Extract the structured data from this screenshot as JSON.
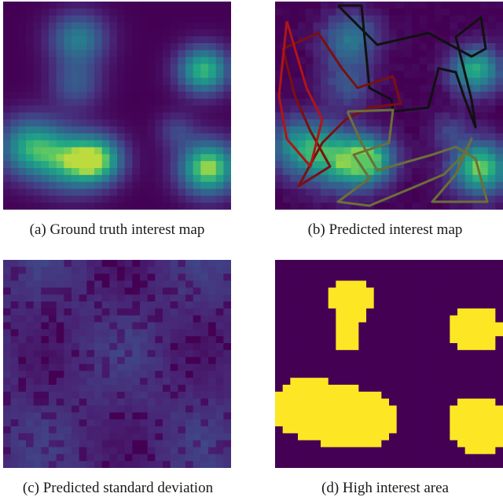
{
  "figure": {
    "panels": [
      {
        "id": "a",
        "caption": "(a)  Ground truth interest map"
      },
      {
        "id": "b",
        "caption": "(b)  Predicted interest map"
      },
      {
        "id": "c",
        "caption": "(c)  Predicted standard deviation"
      },
      {
        "id": "d",
        "caption": "(d)  High interest area"
      }
    ],
    "colors": {
      "viridis_low": "#440154",
      "viridis_mid": "#21918c",
      "viridis_high": "#fde725",
      "path_red": "#b01515",
      "path_dark_red": "#7a1010",
      "path_olive": "#6b6f3a",
      "path_black": "#111111",
      "binary_low": "#440154",
      "binary_high": "#fde725"
    }
  }
}
